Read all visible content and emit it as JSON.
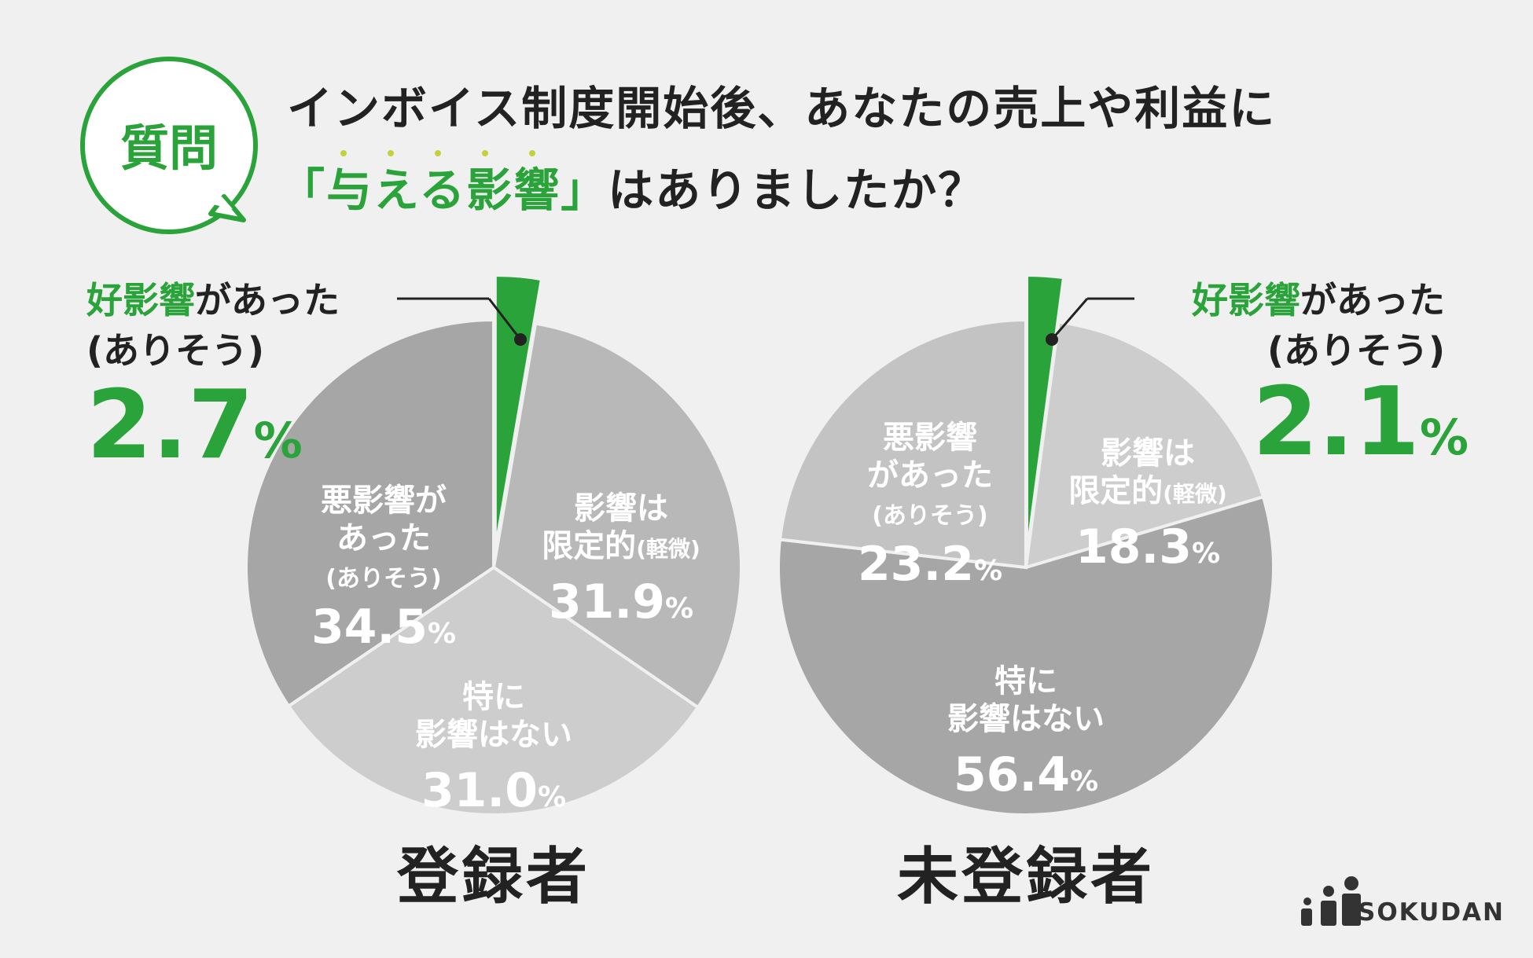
{
  "question": {
    "badge": "質問",
    "line1": "インボイス制度開始後、あなたの売上や利益に",
    "line2_highlight": "「与える影響」",
    "line2_rest": "はありましたか？"
  },
  "brand": {
    "name": "SOKUDAN"
  },
  "colors": {
    "accent_green": "#2aa43a",
    "good": "#2aa43a",
    "bad": "#a6a6a6",
    "limited": "#b8b8b8",
    "none": "#cdcdcd",
    "bad_unregistered": "#c3c3c3",
    "limited_unregistered": "#cdcdcd",
    "none_unregistered": "#a6a6a6"
  },
  "chart_data": [
    {
      "type": "pie",
      "title": "登録者",
      "slices": [
        {
          "label": "好影響があった(ありそう)",
          "value": 2.7,
          "display": "2.7"
        },
        {
          "label": "影響は限定的(軽微)",
          "value": 31.9,
          "display": "31.9"
        },
        {
          "label": "特に影響はない",
          "value": 31.0,
          "display": "31.0"
        },
        {
          "label": "悪影響があった(ありそう)",
          "value": 34.5,
          "display": "34.5"
        }
      ],
      "slice_text": {
        "good_lines": [
          "好影響",
          "があった",
          "(ありそう)"
        ],
        "limited_lines": [
          "影響は",
          "限定的",
          "(軽微)"
        ],
        "none_lines": [
          "特に",
          "影響はない"
        ],
        "bad_lines": [
          "悪影響が",
          "あった",
          "(ありそう)"
        ],
        "unit": "%"
      }
    },
    {
      "type": "pie",
      "title": "未登録者",
      "slices": [
        {
          "label": "好影響があった(ありそう)",
          "value": 2.1,
          "display": "2.1"
        },
        {
          "label": "影響は限定的(軽微)",
          "value": 18.3,
          "display": "18.3"
        },
        {
          "label": "特に影響はない",
          "value": 56.4,
          "display": "56.4"
        },
        {
          "label": "悪影響があった(ありそう)",
          "value": 23.2,
          "display": "23.2"
        }
      ],
      "slice_text": {
        "good_lines": [
          "好影響",
          "があった",
          "(ありそう)"
        ],
        "limited_lines": [
          "影響は",
          "限定的",
          "(軽微)"
        ],
        "none_lines": [
          "特に",
          "影響はない"
        ],
        "bad_lines": [
          "悪影響",
          "があった",
          "(ありそう)"
        ],
        "unit": "%"
      }
    }
  ]
}
